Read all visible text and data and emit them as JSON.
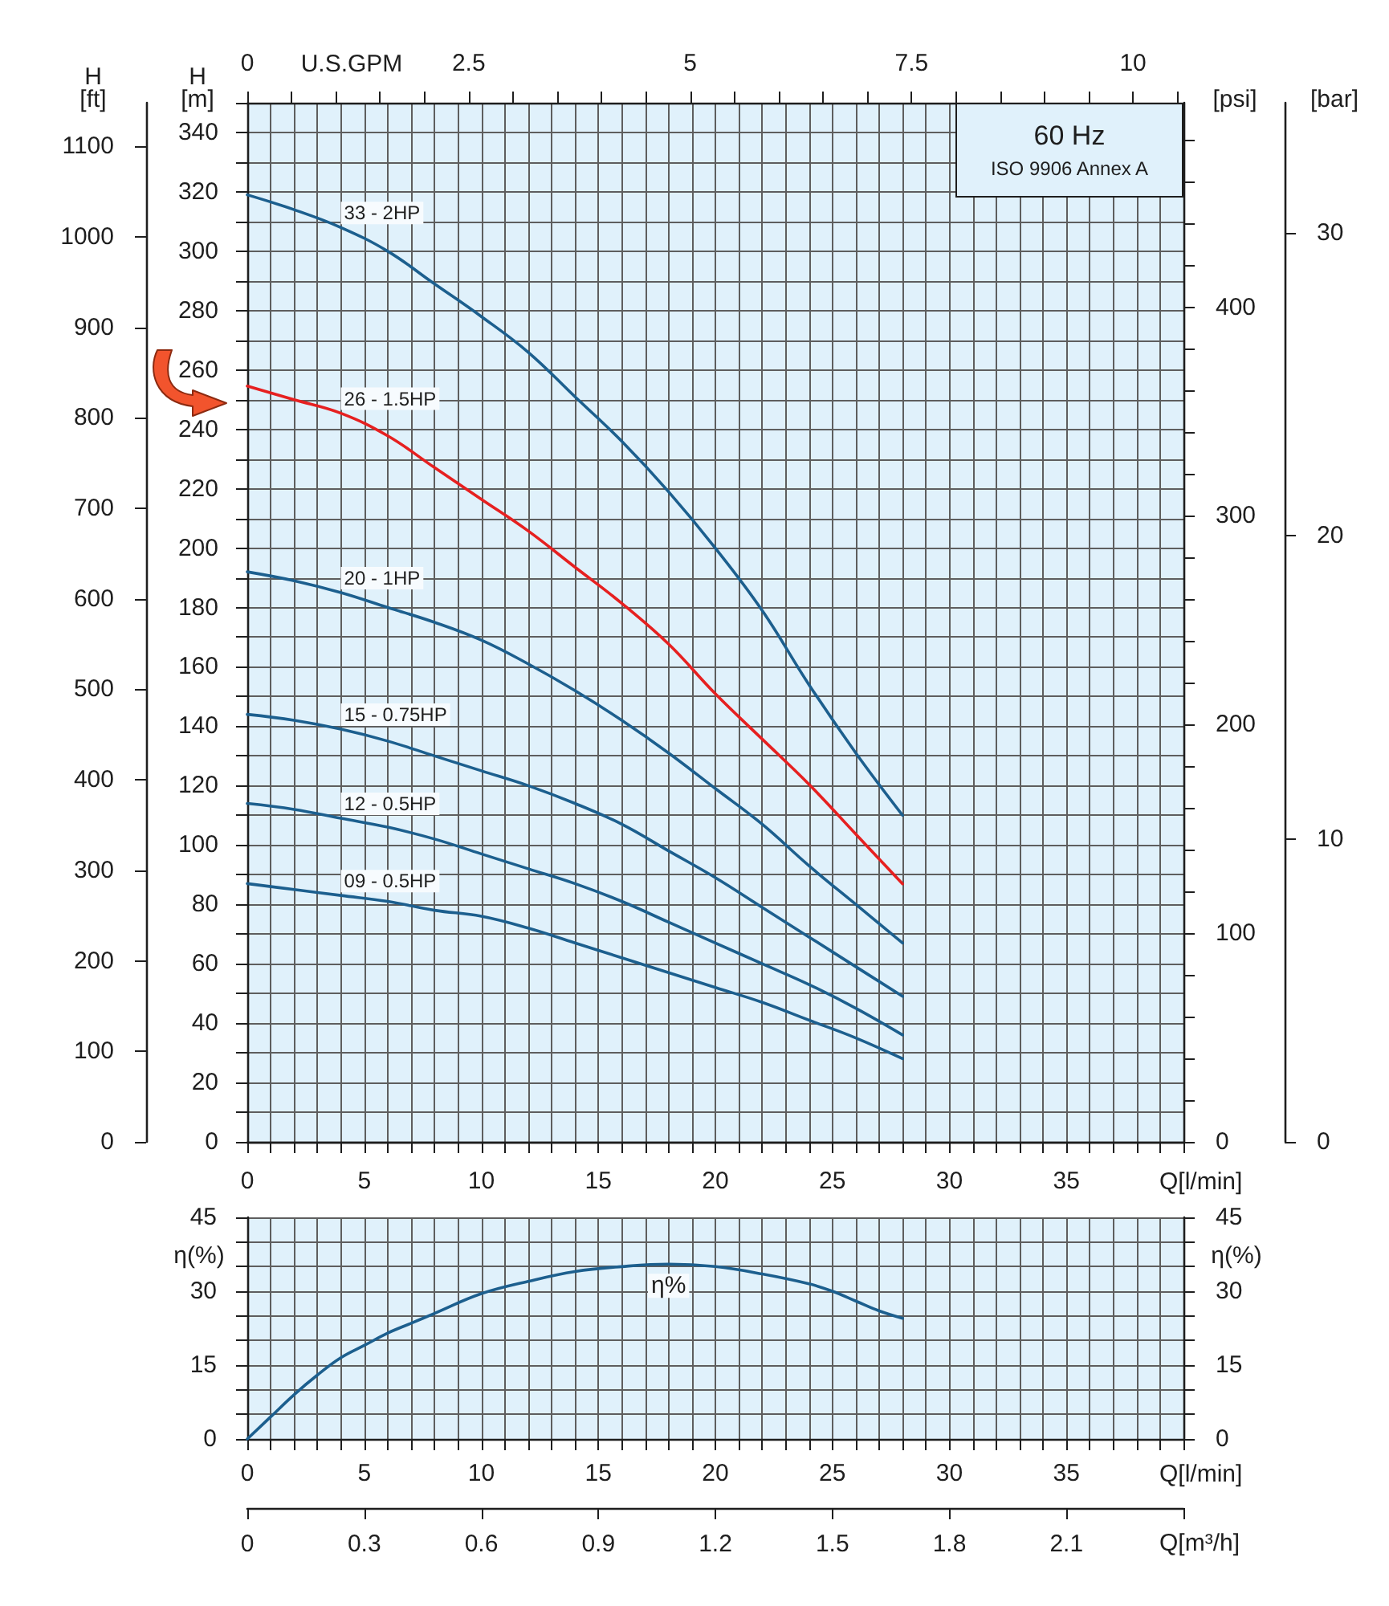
{
  "chart_data": [
    {
      "type": "line",
      "title": "60 Hz",
      "subtitle": "ISO 9906 Annex A",
      "xlabel": "Q[l/min]",
      "ylabel": "H\n[m]",
      "x2label": "U.S.GPM",
      "y2label": "[psi]",
      "y3label": "[bar]",
      "x": [
        0,
        2,
        4,
        6,
        8,
        10,
        12,
        14,
        16,
        18,
        20,
        22,
        24,
        26,
        28
      ],
      "series": [
        {
          "name": "33 - 2HP",
          "color": "#1c5f8e",
          "values": [
            319,
            314,
            308,
            300,
            289,
            278,
            266,
            251,
            236,
            219,
            200,
            179,
            154,
            131,
            110
          ]
        },
        {
          "name": "20 - 1HP",
          "color": "#1c5f8e",
          "values": [
            192,
            189,
            185,
            180,
            175,
            169,
            161,
            152,
            142,
            131,
            119,
            107,
            93,
            80,
            67
          ]
        },
        {
          "name": "15 - 0.75HP",
          "color": "#1c5f8e",
          "values": [
            144,
            142,
            139,
            135,
            130,
            125,
            120,
            114,
            107,
            98,
            89,
            79,
            69,
            59,
            49
          ]
        },
        {
          "name": "12 - 0.5HP",
          "color": "#1c5f8e",
          "values": [
            114,
            112,
            109,
            106,
            102,
            97,
            92,
            87,
            81,
            74,
            67,
            60,
            53,
            45,
            36
          ]
        },
        {
          "name": "09 - 0.5HP",
          "color": "#1c5f8e",
          "values": [
            87,
            85,
            83,
            81,
            78,
            76,
            72,
            67,
            62,
            57,
            52,
            47,
            41,
            35,
            28
          ]
        }
      ],
      "xlim": [
        0,
        40
      ],
      "xticks": [
        0,
        {
          "value": 1,
          "label": null
        },
        {
          "value": 2,
          "label": null
        },
        {
          "value": 3,
          "label": null
        },
        {
          "value": 4,
          "label": null
        },
        5,
        {
          "value": 6,
          "label": null
        },
        {
          "value": 7,
          "label": null
        },
        {
          "value": 8,
          "label": null
        },
        {
          "value": 9,
          "label": null
        },
        10,
        {
          "value": 11,
          "label": null
        },
        {
          "value": 12,
          "label": null
        },
        {
          "value": 13,
          "label": null
        },
        {
          "value": 14,
          "label": null
        },
        15,
        {
          "value": 16,
          "label": null
        },
        {
          "value": 17,
          "label": null
        },
        {
          "value": 18,
          "label": null
        },
        {
          "value": 19,
          "label": null
        },
        20,
        {
          "value": 21,
          "label": null
        },
        {
          "value": 22,
          "label": null
        },
        {
          "value": 23,
          "label": null
        },
        {
          "value": 24,
          "label": null
        },
        25,
        {
          "value": 26,
          "label": null
        },
        {
          "value": 27,
          "label": null
        },
        {
          "value": 28,
          "label": null
        },
        {
          "value": 29,
          "label": null
        },
        30,
        {
          "value": 31,
          "label": null
        },
        {
          "value": 32,
          "label": null
        },
        {
          "value": 33,
          "label": null
        },
        {
          "value": 34,
          "label": null
        },
        35,
        {
          "value": 36,
          "label": null
        },
        {
          "value": 37,
          "label": null
        },
        {
          "value": 38,
          "label": null
        },
        {
          "value": 39,
          "label": null
        },
        {
          "value": 40,
          "label": null
        }
      ],
      "ylim": [
        0,
        350
      ],
      "yticks": [
        0,
        {
          "value": 10,
          "label": null
        },
        20,
        {
          "value": 30,
          "label": null
        },
        40,
        {
          "value": 50,
          "label": null
        },
        60,
        {
          "value": 70,
          "label": null
        },
        80,
        {
          "value": 90,
          "label": null
        },
        100,
        {
          "value": 110,
          "label": null
        },
        120,
        {
          "value": 130,
          "label": null
        },
        140,
        {
          "value": 150,
          "label": null
        },
        160,
        {
          "value": 170,
          "label": null
        },
        180,
        {
          "value": 190,
          "label": null
        },
        200,
        {
          "value": 210,
          "label": null
        },
        220,
        {
          "value": 230,
          "label": null
        },
        240,
        {
          "value": 250,
          "label": null
        },
        260,
        {
          "value": 270,
          "label": null
        },
        280,
        {
          "value": 290,
          "label": null
        },
        300,
        {
          "value": 310,
          "label": null
        },
        320,
        {
          "value": 330,
          "label": null
        },
        340,
        {
          "value": 350,
          "label": null
        }
      ],
      "x2lim": [
        0,
        10.57
      ],
      "x2ticks": [
        0,
        {
          "value": 0.5,
          "label": null
        },
        {
          "value": 1,
          "label": null
        },
        {
          "value": 1.5,
          "label": null
        },
        {
          "value": 2,
          "label": null
        },
        2.5,
        {
          "value": 3,
          "label": null
        },
        {
          "value": 3.5,
          "label": null
        },
        {
          "value": 4,
          "label": null
        },
        {
          "value": 4.5,
          "label": null
        },
        5,
        {
          "value": 5.5,
          "label": null
        },
        {
          "value": 6,
          "label": null
        },
        {
          "value": 6.5,
          "label": null
        },
        {
          "value": 7,
          "label": null
        },
        7.5,
        {
          "value": 8,
          "label": null
        },
        {
          "value": 8.5,
          "label": null
        },
        {
          "value": 9,
          "label": null
        },
        {
          "value": 9.5,
          "label": null
        },
        10,
        {
          "value": 10.5,
          "label": null
        }
      ],
      "y2lim": [
        0,
        498
      ],
      "y2ticks": [
        0,
        {
          "value": 20,
          "label": null
        },
        {
          "value": 40,
          "label": null
        },
        {
          "value": 60,
          "label": null
        },
        {
          "value": 80,
          "label": null
        },
        100,
        {
          "value": 120,
          "label": null
        },
        {
          "value": 140,
          "label": null
        },
        {
          "value": 160,
          "label": null
        },
        {
          "value": 180,
          "label": null
        },
        200,
        {
          "value": 220,
          "label": null
        },
        {
          "value": 240,
          "label": null
        },
        {
          "value": 260,
          "label": null
        },
        {
          "value": 280,
          "label": null
        },
        300,
        {
          "value": 320,
          "label": null
        },
        {
          "value": 340,
          "label": null
        },
        {
          "value": 360,
          "label": null
        },
        {
          "value": 380,
          "label": null
        },
        400,
        {
          "value": 420,
          "label": null
        },
        {
          "value": 440,
          "label": null
        },
        {
          "value": 460,
          "label": null
        },
        {
          "value": 480,
          "label": null
        }
      ],
      "y3lim": [
        0,
        34.3
      ],
      "y3ticks": [
        0,
        10,
        20,
        30
      ],
      "grid": true,
      "marker": "none"
    },
    {
      "type": "line",
      "ylabel": "H\n[ft]",
      "tick_labels": "y",
      "x": [
        0,
        2,
        4,
        6,
        8,
        10,
        12,
        14,
        16,
        18,
        20,
        22,
        24,
        26,
        28
      ],
      "series": [
        {
          "name": "26 - 1.5HP",
          "color": "#e62020",
          "values": [
            835,
            820,
            805,
            780,
            745,
            710,
            675,
            635,
            595,
            550,
            495,
            445,
            395,
            340,
            285
          ]
        }
      ],
      "xlim": [
        0,
        40
      ],
      "ylim": [
        0,
        1148
      ],
      "yticks": [
        0,
        100,
        200,
        300,
        400,
        500,
        600,
        700,
        800,
        900,
        1000,
        1100
      ],
      "marker": "none"
    },
    {
      "type": "line",
      "xlabel": "Q[l/min]",
      "ylabel": "η(%)",
      "y2label": "η(%)",
      "x2label": "Q[m³/h]",
      "x": [
        0,
        1,
        2,
        3,
        4,
        5,
        6,
        7,
        8,
        10,
        12,
        14,
        16,
        18,
        20,
        22,
        24,
        25,
        26,
        27,
        28
      ],
      "series": [
        {
          "name": "η%",
          "color": "#1c5f8e",
          "values": [
            0,
            4.5,
            9,
            13,
            16.5,
            19,
            21.5,
            23.5,
            25.5,
            29.5,
            32,
            34,
            35,
            35.5,
            35,
            33.5,
            31.5,
            30,
            28,
            26,
            24.5
          ]
        }
      ],
      "xlim": [
        0,
        40
      ],
      "xticks": [
        0,
        {
          "value": 1,
          "label": null
        },
        {
          "value": 2,
          "label": null
        },
        {
          "value": 3,
          "label": null
        },
        {
          "value": 4,
          "label": null
        },
        5,
        {
          "value": 6,
          "label": null
        },
        {
          "value": 7,
          "label": null
        },
        {
          "value": 8,
          "label": null
        },
        {
          "value": 9,
          "label": null
        },
        10,
        {
          "value": 11,
          "label": null
        },
        {
          "value": 12,
          "label": null
        },
        {
          "value": 13,
          "label": null
        },
        {
          "value": 14,
          "label": null
        },
        15,
        {
          "value": 16,
          "label": null
        },
        {
          "value": 17,
          "label": null
        },
        {
          "value": 18,
          "label": null
        },
        {
          "value": 19,
          "label": null
        },
        20,
        {
          "value": 21,
          "label": null
        },
        {
          "value": 22,
          "label": null
        },
        {
          "value": 23,
          "label": null
        },
        {
          "value": 24,
          "label": null
        },
        25,
        {
          "value": 26,
          "label": null
        },
        {
          "value": 27,
          "label": null
        },
        {
          "value": 28,
          "label": null
        },
        {
          "value": 29,
          "label": null
        },
        30,
        {
          "value": 31,
          "label": null
        },
        {
          "value": 32,
          "label": null
        },
        {
          "value": 33,
          "label": null
        },
        {
          "value": 34,
          "label": null
        },
        35,
        {
          "value": 36,
          "label": null
        },
        {
          "value": 37,
          "label": null
        },
        {
          "value": 38,
          "label": null
        },
        {
          "value": 39,
          "label": null
        },
        {
          "value": 40,
          "label": null
        }
      ],
      "ylim": [
        0,
        45
      ],
      "yticks": [
        0,
        {
          "value": 5,
          "label": null
        },
        {
          "value": 10,
          "label": null
        },
        15,
        {
          "value": 20,
          "label": null
        },
        {
          "value": 25,
          "label": null
        },
        30,
        {
          "value": 35,
          "label": null
        },
        {
          "value": 40,
          "label": null
        },
        45
      ],
      "y2lim": [
        0,
        45
      ],
      "y2ticks": [
        0,
        {
          "value": 5,
          "label": null
        },
        {
          "value": 10,
          "label": null
        },
        15,
        {
          "value": 20,
          "label": null
        },
        {
          "value": 25,
          "label": null
        },
        30,
        {
          "value": 35,
          "label": null
        },
        {
          "value": 40,
          "label": null
        },
        45
      ],
      "x2lim": [
        0,
        2.4
      ],
      "x2ticks": [
        0,
        0.3,
        0.6,
        0.9,
        1.2,
        1.5,
        1.8,
        2.1,
        {
          "value": 2.4,
          "label": null
        }
      ],
      "grid": true,
      "marker": "none"
    }
  ]
}
